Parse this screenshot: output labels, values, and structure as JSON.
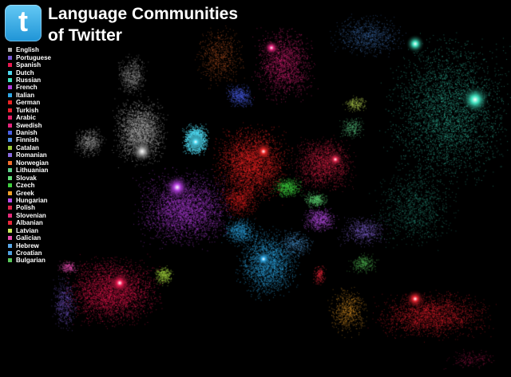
{
  "title": {
    "line1": "Language Communities",
    "line2": "of Twitter"
  },
  "logo": {
    "glyph": "t",
    "name": "twitter-logo"
  },
  "legend": [
    {
      "label": "English",
      "color": "#a9a9a9"
    },
    {
      "label": "Portuguese",
      "color": "#7b5bd6"
    },
    {
      "label": "Spanish",
      "color": "#e8194f"
    },
    {
      "label": "Dutch",
      "color": "#4fd8f0"
    },
    {
      "label": "Russian",
      "color": "#3fe3c0"
    },
    {
      "label": "French",
      "color": "#b43fe0"
    },
    {
      "label": "Italian",
      "color": "#2fa8e6"
    },
    {
      "label": "German",
      "color": "#e82424"
    },
    {
      "label": "Turkish",
      "color": "#e8222e"
    },
    {
      "label": "Arabic",
      "color": "#e81f6a"
    },
    {
      "label": "Swedish",
      "color": "#e6257e"
    },
    {
      "label": "Danish",
      "color": "#4a5fe6"
    },
    {
      "label": "Finnish",
      "color": "#4f8fe0"
    },
    {
      "label": "Catalan",
      "color": "#9ccc3c"
    },
    {
      "label": "Romanian",
      "color": "#8a6ae0"
    },
    {
      "label": "Norwegian",
      "color": "#f26f2f"
    },
    {
      "label": "Lithuanian",
      "color": "#5fd08a"
    },
    {
      "label": "Slovak",
      "color": "#63e07a"
    },
    {
      "label": "Czech",
      "color": "#3fcf3f"
    },
    {
      "label": "Greek",
      "color": "#f0a02a"
    },
    {
      "label": "Hungarian",
      "color": "#b94fe8"
    },
    {
      "label": "Polish",
      "color": "#e0244a"
    },
    {
      "label": "Slovenian",
      "color": "#e62b7a"
    },
    {
      "label": "Albanian",
      "color": "#e8283a"
    },
    {
      "label": "Latvian",
      "color": "#c8e85a"
    },
    {
      "label": "Galician",
      "color": "#e84fb2"
    },
    {
      "label": "Hebrew",
      "color": "#5aa8e8"
    },
    {
      "label": "Croatian",
      "color": "#4fa0e0"
    },
    {
      "label": "Bulgarian",
      "color": "#58c85a"
    }
  ]
}
